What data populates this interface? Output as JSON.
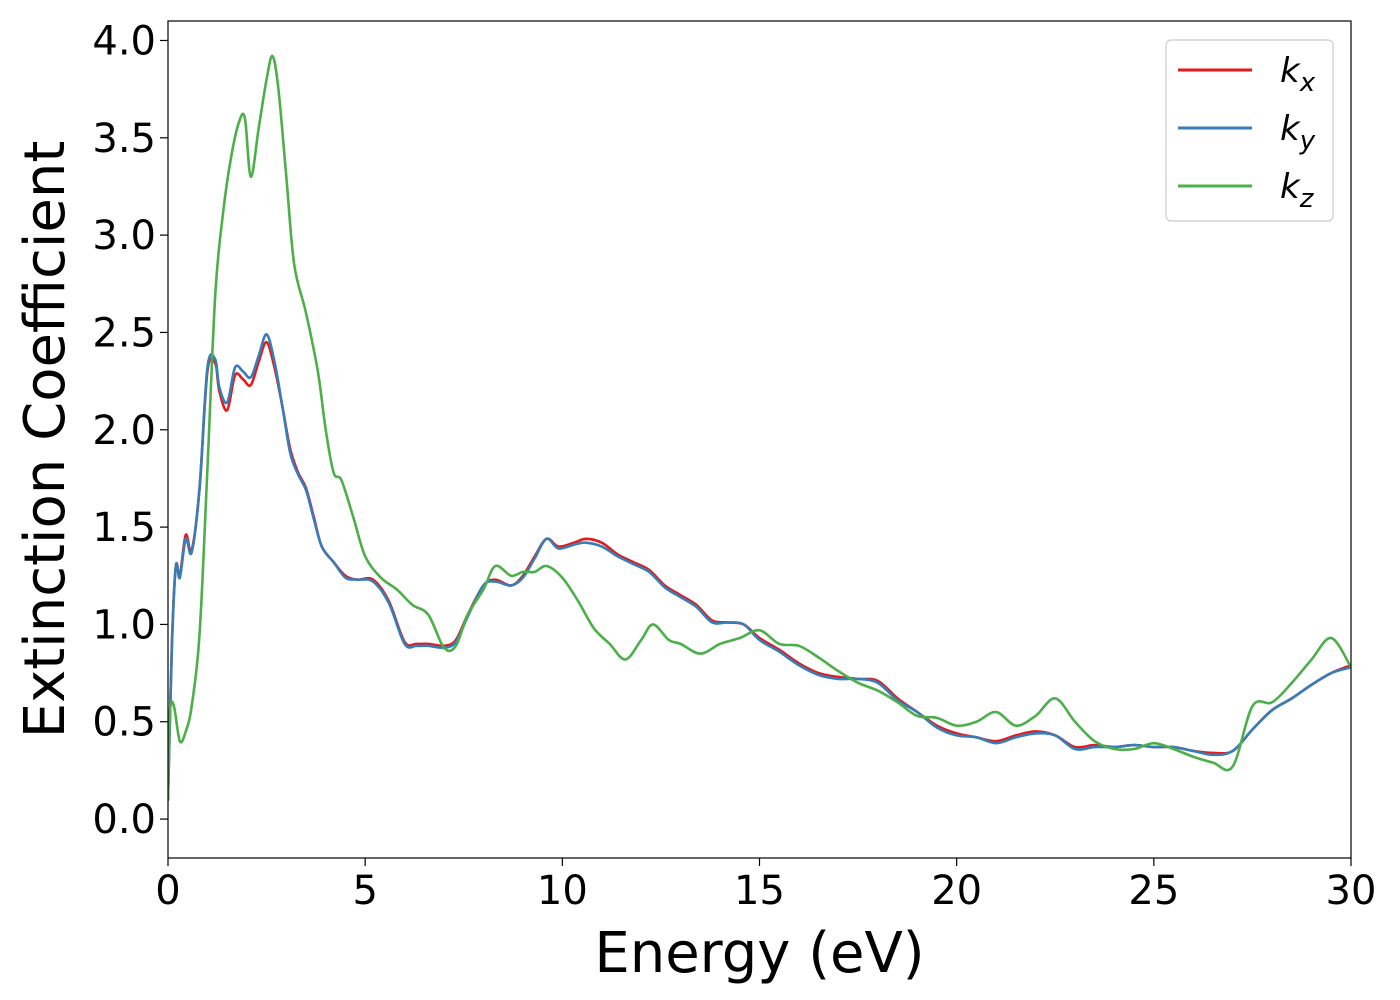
{
  "chart_data": {
    "type": "line",
    "xlabel": "Energy (eV)",
    "ylabel": "Extinction Coefficient",
    "xlim": [
      0,
      30
    ],
    "ylim": [
      -0.2,
      4.1
    ],
    "xticks": [
      0,
      5,
      10,
      15,
      20,
      25,
      30
    ],
    "yticks": [
      0.0,
      0.5,
      1.0,
      1.5,
      2.0,
      2.5,
      3.0,
      3.5,
      4.0
    ],
    "xtick_labels": [
      "0",
      "5",
      "10",
      "15",
      "20",
      "25",
      "30"
    ],
    "ytick_labels": [
      "0.0",
      "0.5",
      "1.0",
      "1.5",
      "2.0",
      "2.5",
      "3.0",
      "3.5",
      "4.0"
    ],
    "grid": false,
    "legend_position": "top-right",
    "series": [
      {
        "name": "k",
        "subscript": "x",
        "color": "#e41a1c",
        "x": [
          0.0,
          0.1,
          0.2,
          0.3,
          0.45,
          0.6,
          0.8,
          1.0,
          1.2,
          1.3,
          1.5,
          1.7,
          1.9,
          2.1,
          2.3,
          2.5,
          2.7,
          2.9,
          3.1,
          3.3,
          3.5,
          3.7,
          3.9,
          4.2,
          4.5,
          4.8,
          5.2,
          5.6,
          6.0,
          6.3,
          6.6,
          7.0,
          7.3,
          7.6,
          8.0,
          8.3,
          8.7,
          9.0,
          9.3,
          9.6,
          9.9,
          10.3,
          10.6,
          11.0,
          11.4,
          11.8,
          12.2,
          12.6,
          13.0,
          13.4,
          13.8,
          14.2,
          14.6,
          15.0,
          15.5,
          16.0,
          16.5,
          17.0,
          17.5,
          18.0,
          18.5,
          19.0,
          19.5,
          20.0,
          20.5,
          21.0,
          21.5,
          22.0,
          22.5,
          23.0,
          23.5,
          24.0,
          24.5,
          25.0,
          25.5,
          26.0,
          26.5,
          27.0,
          27.5,
          28.0,
          28.5,
          29.0,
          29.5,
          30.0
        ],
        "y": [
          0.1,
          0.9,
          1.3,
          1.25,
          1.46,
          1.38,
          1.7,
          2.3,
          2.34,
          2.2,
          2.1,
          2.28,
          2.26,
          2.23,
          2.35,
          2.45,
          2.32,
          2.12,
          1.9,
          1.78,
          1.7,
          1.55,
          1.4,
          1.32,
          1.25,
          1.23,
          1.23,
          1.12,
          0.91,
          0.9,
          0.9,
          0.89,
          0.92,
          1.05,
          1.2,
          1.23,
          1.2,
          1.25,
          1.35,
          1.44,
          1.4,
          1.42,
          1.44,
          1.42,
          1.36,
          1.32,
          1.28,
          1.2,
          1.15,
          1.1,
          1.02,
          1.01,
          1.0,
          0.93,
          0.87,
          0.8,
          0.75,
          0.73,
          0.72,
          0.71,
          0.62,
          0.55,
          0.48,
          0.44,
          0.42,
          0.4,
          0.43,
          0.45,
          0.43,
          0.37,
          0.38,
          0.37,
          0.38,
          0.37,
          0.37,
          0.35,
          0.34,
          0.35,
          0.46,
          0.56,
          0.62,
          0.69,
          0.75,
          0.79
        ]
      },
      {
        "name": "k",
        "subscript": "y",
        "color": "#377eb8",
        "x": [
          0.0,
          0.1,
          0.2,
          0.3,
          0.45,
          0.6,
          0.8,
          1.0,
          1.2,
          1.3,
          1.5,
          1.7,
          1.9,
          2.1,
          2.3,
          2.5,
          2.7,
          2.9,
          3.1,
          3.3,
          3.5,
          3.7,
          3.9,
          4.2,
          4.5,
          4.8,
          5.2,
          5.6,
          6.0,
          6.3,
          6.6,
          7.0,
          7.3,
          7.6,
          8.0,
          8.3,
          8.7,
          9.0,
          9.3,
          9.6,
          9.9,
          10.3,
          10.6,
          11.0,
          11.4,
          11.8,
          12.2,
          12.6,
          13.0,
          13.4,
          13.8,
          14.2,
          14.6,
          15.0,
          15.5,
          16.0,
          16.5,
          17.0,
          17.5,
          18.0,
          18.5,
          19.0,
          19.5,
          20.0,
          20.5,
          21.0,
          21.5,
          22.0,
          22.5,
          23.0,
          23.5,
          24.0,
          24.5,
          25.0,
          25.5,
          26.0,
          26.5,
          27.0,
          27.5,
          28.0,
          28.5,
          29.0,
          29.5,
          30.0
        ],
        "y": [
          0.1,
          0.9,
          1.3,
          1.24,
          1.44,
          1.37,
          1.7,
          2.32,
          2.36,
          2.22,
          2.14,
          2.32,
          2.3,
          2.27,
          2.38,
          2.49,
          2.35,
          2.12,
          1.88,
          1.77,
          1.69,
          1.54,
          1.4,
          1.32,
          1.24,
          1.23,
          1.22,
          1.11,
          0.9,
          0.89,
          0.89,
          0.88,
          0.91,
          1.04,
          1.2,
          1.22,
          1.2,
          1.24,
          1.34,
          1.44,
          1.39,
          1.41,
          1.42,
          1.4,
          1.35,
          1.31,
          1.27,
          1.19,
          1.14,
          1.09,
          1.01,
          1.01,
          1.0,
          0.92,
          0.86,
          0.79,
          0.74,
          0.72,
          0.72,
          0.7,
          0.61,
          0.55,
          0.47,
          0.43,
          0.42,
          0.39,
          0.42,
          0.44,
          0.43,
          0.36,
          0.37,
          0.37,
          0.38,
          0.37,
          0.37,
          0.35,
          0.33,
          0.35,
          0.46,
          0.56,
          0.62,
          0.69,
          0.75,
          0.78
        ]
      },
      {
        "name": "k",
        "subscript": "z",
        "color": "#4daf4a",
        "x": [
          0.0,
          0.05,
          0.15,
          0.3,
          0.45,
          0.6,
          0.8,
          1.0,
          1.2,
          1.4,
          1.6,
          1.8,
          1.95,
          2.1,
          2.3,
          2.5,
          2.65,
          2.8,
          3.0,
          3.2,
          3.5,
          3.8,
          4.0,
          4.2,
          4.4,
          4.7,
          5.0,
          5.4,
          5.8,
          6.2,
          6.6,
          7.0,
          7.3,
          7.6,
          8.0,
          8.3,
          8.7,
          9.0,
          9.3,
          9.6,
          10.0,
          10.4,
          10.8,
          11.2,
          11.6,
          12.0,
          12.3,
          12.7,
          13.0,
          13.5,
          14.0,
          14.5,
          15.0,
          15.5,
          16.0,
          16.5,
          17.0,
          17.5,
          18.0,
          18.5,
          19.0,
          19.5,
          20.0,
          20.5,
          21.0,
          21.5,
          22.0,
          22.5,
          23.0,
          23.5,
          24.0,
          24.5,
          25.0,
          25.5,
          26.0,
          26.5,
          27.0,
          27.5,
          28.0,
          28.5,
          29.0,
          29.5,
          30.0
        ],
        "y": [
          0.1,
          0.55,
          0.58,
          0.4,
          0.45,
          0.58,
          0.95,
          1.8,
          2.7,
          3.12,
          3.4,
          3.58,
          3.6,
          3.3,
          3.55,
          3.8,
          3.92,
          3.75,
          3.3,
          2.85,
          2.6,
          2.3,
          2.0,
          1.78,
          1.74,
          1.55,
          1.35,
          1.24,
          1.18,
          1.1,
          1.05,
          0.88,
          0.89,
          1.05,
          1.18,
          1.3,
          1.25,
          1.27,
          1.27,
          1.3,
          1.24,
          1.12,
          0.98,
          0.9,
          0.82,
          0.92,
          1.0,
          0.92,
          0.9,
          0.85,
          0.9,
          0.93,
          0.97,
          0.9,
          0.89,
          0.83,
          0.76,
          0.7,
          0.66,
          0.6,
          0.53,
          0.52,
          0.48,
          0.5,
          0.55,
          0.48,
          0.53,
          0.62,
          0.5,
          0.4,
          0.36,
          0.36,
          0.39,
          0.36,
          0.32,
          0.29,
          0.27,
          0.58,
          0.6,
          0.7,
          0.82,
          0.93,
          0.78
        ]
      }
    ]
  }
}
